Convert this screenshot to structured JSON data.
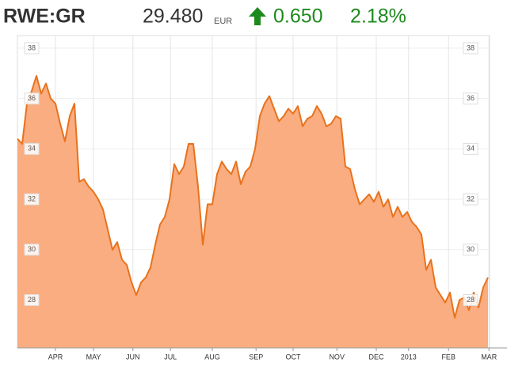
{
  "header": {
    "symbol": "RWE:GR",
    "price": "29.480",
    "currency": "EUR",
    "change": "0.650",
    "change_pct": "2.18%"
  },
  "chart_data": {
    "type": "area",
    "series": [
      {
        "name": "RWE:GR",
        "color": "#e8721c",
        "fill": "#f9ad80",
        "values": [
          34.4,
          34.2,
          35.8,
          36.3,
          36.9,
          36.2,
          36.6,
          36.0,
          35.8,
          35.0,
          34.3,
          35.3,
          35.8,
          32.7,
          32.8,
          32.5,
          32.3,
          32.0,
          31.6,
          30.8,
          30.0,
          30.3,
          29.6,
          29.4,
          28.7,
          28.2,
          28.7,
          28.9,
          29.3,
          30.2,
          31.0,
          31.3,
          32.0,
          33.4,
          33.0,
          33.3,
          34.2,
          34.2,
          32.5,
          30.2,
          31.8,
          31.8,
          33.0,
          33.5,
          33.2,
          33.0,
          33.5,
          32.6,
          33.1,
          33.3,
          34.0,
          35.3,
          35.8,
          36.1,
          35.6,
          35.1,
          35.3,
          35.6,
          35.4,
          35.7,
          34.9,
          35.2,
          35.3,
          35.7,
          35.4,
          34.9,
          35.0,
          35.3,
          35.2,
          33.3,
          33.2,
          32.4,
          31.8,
          32.0,
          32.2,
          31.9,
          32.3,
          31.7,
          32.0,
          31.3,
          31.7,
          31.3,
          31.5,
          31.1,
          30.9,
          30.6,
          29.2,
          29.6,
          28.5,
          28.2,
          27.9,
          28.3,
          27.3,
          28.0,
          28.1,
          27.6,
          28.3,
          27.7,
          28.5,
          28.9
        ]
      }
    ],
    "xlim": [
      0,
      99
    ],
    "xticks": [
      {
        "value": 8,
        "label": "APR"
      },
      {
        "value": 16,
        "label": "MAY"
      },
      {
        "value": 24.3,
        "label": "JUN"
      },
      {
        "value": 32.2,
        "label": "JUL"
      },
      {
        "value": 41,
        "label": "AUG"
      },
      {
        "value": 50.2,
        "label": "SEP"
      },
      {
        "value": 58,
        "label": "OCT"
      },
      {
        "value": 67.2,
        "label": "NOV"
      },
      {
        "value": 75.5,
        "label": "DEC"
      },
      {
        "value": 82.3,
        "label": "2013"
      },
      {
        "value": 90.7,
        "label": "FEB"
      },
      {
        "value": 99.2,
        "label": "MAR"
      }
    ],
    "ylim": [
      26.1,
      38.5
    ],
    "yticks": [
      28,
      30,
      32,
      34,
      36,
      38
    ],
    "grid": true
  }
}
